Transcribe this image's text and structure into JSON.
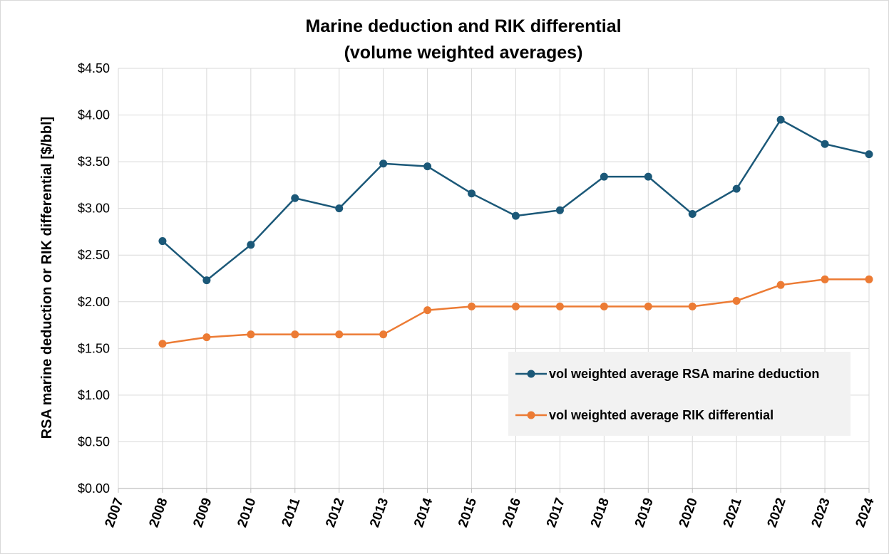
{
  "chart_data": {
    "type": "line",
    "title": [
      "Marine deduction and RIK differential",
      "(volume weighted averages)"
    ],
    "ylabel": "RSA marine  deduction or RIK differential [$/bbl]",
    "xlabel": "",
    "x": [
      "2007",
      "2008",
      "2009",
      "2010",
      "2011",
      "2012",
      "2013",
      "2014",
      "2015",
      "2016",
      "2017",
      "2018",
      "2019",
      "2020",
      "2021",
      "2022",
      "2023",
      "2024"
    ],
    "ylim": [
      0,
      4.5
    ],
    "yticks": [
      0,
      0.5,
      1.0,
      1.5,
      2.0,
      2.5,
      3.0,
      3.5,
      4.0,
      4.5
    ],
    "ytick_labels": [
      "$0.00",
      "$0.50",
      "$1.00",
      "$1.50",
      "$2.00",
      "$2.50",
      "$3.00",
      "$3.50",
      "$4.00",
      "$4.50"
    ],
    "grid": true,
    "legend_position": "right",
    "series": [
      {
        "name": "vol weighted average RSA marine deduction",
        "color": "#1b5878",
        "values": [
          null,
          2.65,
          2.23,
          2.61,
          3.11,
          3.0,
          3.48,
          3.45,
          3.16,
          2.92,
          2.98,
          3.34,
          3.34,
          2.94,
          3.21,
          3.95,
          3.69,
          3.58
        ]
      },
      {
        "name": "vol weighted average RIK differential",
        "color": "#ec7b34",
        "values": [
          null,
          1.55,
          1.62,
          1.65,
          1.65,
          1.65,
          1.65,
          1.91,
          1.95,
          1.95,
          1.95,
          1.95,
          1.95,
          1.95,
          2.01,
          2.18,
          2.24,
          2.24
        ]
      }
    ]
  }
}
